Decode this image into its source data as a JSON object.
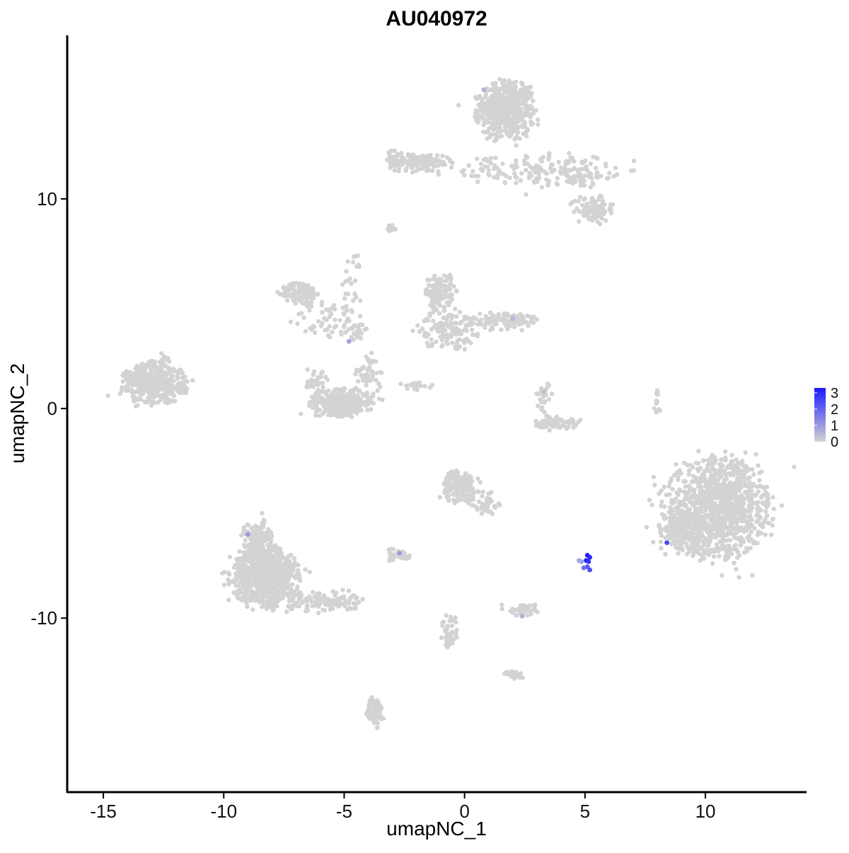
{
  "chart_data": {
    "type": "scatter",
    "title": "AU040972",
    "xlabel": "umapNC_1",
    "ylabel": "umapNC_2",
    "xlim": [
      -16.5,
      14.2
    ],
    "ylim": [
      -18.3,
      17.8
    ],
    "xticks": [
      {
        "value": -15,
        "label": "-15"
      },
      {
        "value": -10,
        "label": "-10"
      },
      {
        "value": -5,
        "label": "-5"
      },
      {
        "value": 0,
        "label": "0"
      },
      {
        "value": 5,
        "label": "5"
      },
      {
        "value": 10,
        "label": "10"
      }
    ],
    "yticks": [
      {
        "value": 10,
        "label": "10"
      },
      {
        "value": 0,
        "label": "0"
      },
      {
        "value": -10,
        "label": "-10"
      }
    ],
    "grid": false,
    "legend": {
      "placement": "right",
      "low_color": "#d3d3d3",
      "high_color": "#1a1aff",
      "range": [
        0,
        3.3
      ],
      "ticks": [
        {
          "value": 0,
          "label": "0"
        },
        {
          "value": 1,
          "label": "1"
        },
        {
          "value": 2,
          "label": "2"
        },
        {
          "value": 3,
          "label": "3"
        }
      ]
    },
    "point_color_base": "#d3d3d3",
    "clusters": [
      {
        "cx": 1.7,
        "cy": 14.2,
        "rx": 1.1,
        "ry": 1.3,
        "n": 500
      },
      {
        "cx": 3.2,
        "cy": 11.4,
        "rx": 2.9,
        "ry": 0.7,
        "n": 160
      },
      {
        "cx": -1.8,
        "cy": 11.7,
        "rx": 1.2,
        "ry": 0.4,
        "n": 120
      },
      {
        "cx": 5.3,
        "cy": 9.5,
        "rx": 0.8,
        "ry": 0.6,
        "n": 90
      },
      {
        "cx": 4.9,
        "cy": 11.1,
        "rx": 0.6,
        "ry": 0.6,
        "n": 40
      },
      {
        "cx": -6.8,
        "cy": 5.5,
        "rx": 0.7,
        "ry": 0.5,
        "n": 130
      },
      {
        "cx": -5.5,
        "cy": 4.2,
        "rx": 1.6,
        "ry": 0.8,
        "n": 60
      },
      {
        "cx": -4.6,
        "cy": 6.0,
        "rx": 0.4,
        "ry": 1.4,
        "n": 25
      },
      {
        "cx": -4.5,
        "cy": 3.7,
        "rx": 0.4,
        "ry": 0.4,
        "n": 20
      },
      {
        "cx": -5.1,
        "cy": 0.3,
        "rx": 1.2,
        "ry": 0.6,
        "n": 320
      },
      {
        "cx": -4.0,
        "cy": 1.6,
        "rx": 0.5,
        "ry": 0.9,
        "n": 50
      },
      {
        "cx": -6.2,
        "cy": 1.4,
        "rx": 0.4,
        "ry": 0.6,
        "n": 30
      },
      {
        "cx": -1.0,
        "cy": 5.6,
        "rx": 0.6,
        "ry": 0.7,
        "n": 120
      },
      {
        "cx": -0.7,
        "cy": 3.8,
        "rx": 1.1,
        "ry": 0.9,
        "n": 140
      },
      {
        "cx": 1.7,
        "cy": 4.2,
        "rx": 1.2,
        "ry": 0.4,
        "n": 110
      },
      {
        "cx": 3.8,
        "cy": -0.7,
        "rx": 0.8,
        "ry": 0.3,
        "n": 70
      },
      {
        "cx": 3.3,
        "cy": 0.6,
        "rx": 0.3,
        "ry": 0.6,
        "n": 25
      },
      {
        "cx": 8.0,
        "cy": 0.3,
        "rx": 0.15,
        "ry": 0.6,
        "n": 12
      },
      {
        "cx": -0.2,
        "cy": -3.7,
        "rx": 0.7,
        "ry": 0.7,
        "n": 160
      },
      {
        "cx": 0.9,
        "cy": -4.5,
        "rx": 0.6,
        "ry": 0.6,
        "n": 40
      },
      {
        "cx": 10.5,
        "cy": -4.8,
        "rx": 2.0,
        "ry": 2.1,
        "n": 1100
      },
      {
        "cx": 9.0,
        "cy": -5.8,
        "rx": 0.8,
        "ry": 0.8,
        "n": 150
      },
      {
        "cx": -12.9,
        "cy": 1.2,
        "rx": 1.2,
        "ry": 0.9,
        "n": 380
      },
      {
        "cx": -12.5,
        "cy": 1.9,
        "rx": 0.3,
        "ry": 0.6,
        "n": 25
      },
      {
        "cx": -8.3,
        "cy": -8.0,
        "rx": 1.3,
        "ry": 1.3,
        "n": 650
      },
      {
        "cx": -8.6,
        "cy": -6.3,
        "rx": 0.6,
        "ry": 0.9,
        "n": 140
      },
      {
        "cx": -6.0,
        "cy": -9.2,
        "rx": 1.6,
        "ry": 0.45,
        "n": 120
      },
      {
        "cx": -2.7,
        "cy": -7.0,
        "rx": 0.4,
        "ry": 0.3,
        "n": 45
      },
      {
        "cx": 2.4,
        "cy": -9.6,
        "rx": 0.6,
        "ry": 0.25,
        "n": 55
      },
      {
        "cx": -0.6,
        "cy": -10.7,
        "rx": 0.3,
        "ry": 1.0,
        "n": 45
      },
      {
        "cx": 2.1,
        "cy": -12.7,
        "rx": 0.4,
        "ry": 0.2,
        "n": 25
      },
      {
        "cx": -3.7,
        "cy": -14.5,
        "rx": 0.3,
        "ry": 0.7,
        "n": 60
      },
      {
        "cx": -2.9,
        "cy": 11.9,
        "rx": 0.4,
        "ry": 0.4,
        "n": 40
      },
      {
        "cx": -3.0,
        "cy": 8.6,
        "rx": 0.2,
        "ry": 0.15,
        "n": 10
      },
      {
        "cx": -2.0,
        "cy": 1.1,
        "rx": 0.6,
        "ry": 0.2,
        "n": 20
      }
    ],
    "expressing_cells": [
      {
        "x": 5.1,
        "y": -7.0,
        "value": 3.2
      },
      {
        "x": 5.2,
        "y": -7.1,
        "value": 3.0
      },
      {
        "x": 5.05,
        "y": -7.25,
        "value": 3.1
      },
      {
        "x": 5.15,
        "y": -7.3,
        "value": 2.8
      },
      {
        "x": 5.2,
        "y": -7.7,
        "value": 2.4
      },
      {
        "x": 5.1,
        "y": -7.55,
        "value": 2.2
      },
      {
        "x": 4.95,
        "y": -7.6,
        "value": 1.8
      },
      {
        "x": 4.85,
        "y": -7.3,
        "value": 1.0
      },
      {
        "x": 4.75,
        "y": -7.25,
        "value": 0.8
      },
      {
        "x": 8.4,
        "y": -6.4,
        "value": 2.5
      },
      {
        "x": -9.0,
        "y": -6.0,
        "value": 1.0
      },
      {
        "x": -2.7,
        "y": -6.9,
        "value": 1.0
      },
      {
        "x": 2.4,
        "y": -9.9,
        "value": 0.6
      },
      {
        "x": 2.0,
        "y": 4.3,
        "value": 0.5
      },
      {
        "x": 0.8,
        "y": 15.2,
        "value": 0.6
      },
      {
        "x": -4.8,
        "y": 3.2,
        "value": 0.9
      },
      {
        "x": 3.3,
        "y": 0.8,
        "value": 0.4
      }
    ]
  }
}
